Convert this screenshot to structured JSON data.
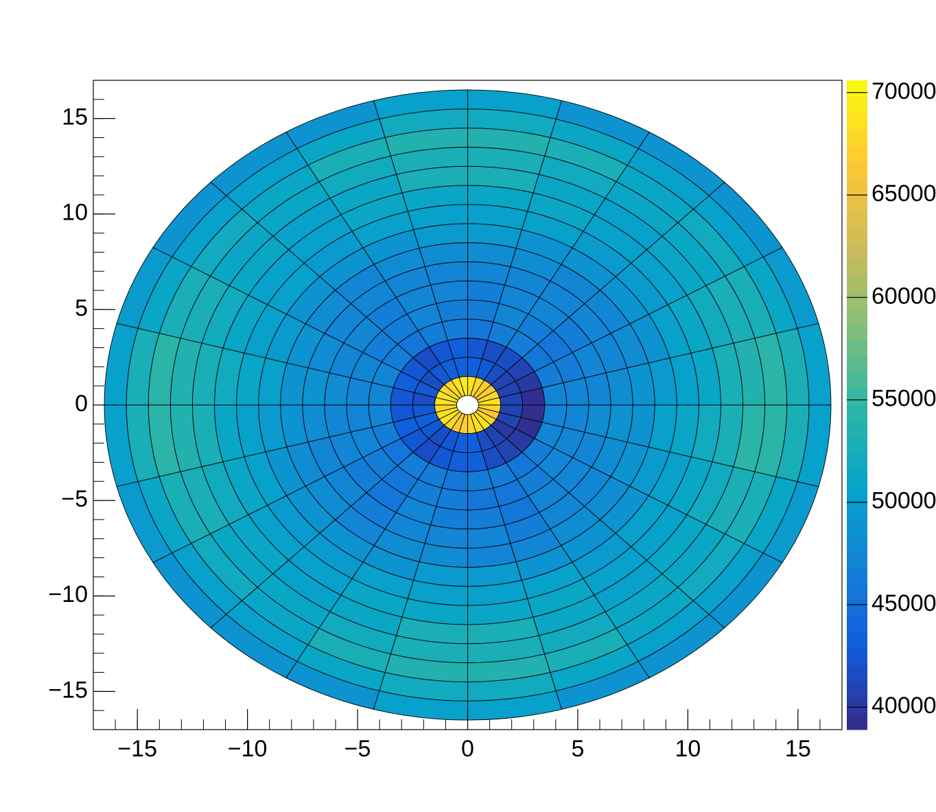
{
  "chart_data": {
    "type": "polar_heatmap",
    "r_edges": [
      0.5,
      1.5,
      2.5,
      3.5,
      4.5,
      5.5,
      6.5,
      7.5,
      8.5,
      9.5,
      10.5,
      11.5,
      12.5,
      13.5,
      14.5,
      15.5,
      16.5
    ],
    "sectors": 24,
    "values": [
      [
        68500,
        67500,
        66500,
        67000,
        68000,
        69000,
        69500,
        68500,
        67500,
        68000,
        69000,
        68500,
        67500,
        68500,
        69000,
        68000,
        66500,
        67000,
        68000,
        69000,
        68500,
        67500,
        66500,
        67500
      ],
      [
        40500,
        41000,
        40500,
        41500,
        42500,
        43000,
        43500,
        43000,
        42500,
        42000,
        42500,
        42000,
        42500,
        43000,
        42500,
        42000,
        42500,
        43000,
        43500,
        41500,
        40500,
        40000,
        40500,
        40500
      ],
      [
        39500,
        40000,
        40500,
        41500,
        42000,
        42500,
        43000,
        42500,
        42000,
        42500,
        43000,
        42500,
        42500,
        43000,
        42500,
        42000,
        42500,
        43500,
        43000,
        41500,
        40500,
        40000,
        39500,
        39500
      ],
      [
        47000,
        46500,
        46000,
        46500,
        46500,
        46000,
        46500,
        46500,
        46000,
        46500,
        47000,
        47500,
        47000,
        46500,
        46000,
        46500,
        46500,
        46000,
        46500,
        46500,
        46000,
        46500,
        47000,
        47500
      ],
      [
        47000,
        46500,
        45500,
        46500,
        47000,
        46500,
        46500,
        47000,
        46500,
        46500,
        47000,
        47500,
        47500,
        47000,
        46500,
        46000,
        46500,
        46500,
        46000,
        45500,
        46500,
        47000,
        47000,
        47500
      ],
      [
        47500,
        47000,
        46500,
        47000,
        47000,
        46500,
        47000,
        47000,
        46500,
        47000,
        47500,
        48000,
        47500,
        47000,
        46500,
        46000,
        47000,
        46500,
        46500,
        46000,
        47000,
        47500,
        47500,
        48000
      ],
      [
        48000,
        47500,
        47000,
        47000,
        47500,
        47000,
        47500,
        47500,
        47000,
        47500,
        48000,
        48500,
        48000,
        47500,
        47000,
        46500,
        47500,
        47000,
        47000,
        46500,
        47500,
        47500,
        48000,
        48500
      ],
      [
        48500,
        48000,
        47500,
        47500,
        48000,
        48000,
        48000,
        48000,
        47500,
        48000,
        48500,
        49000,
        48500,
        48000,
        48000,
        47500,
        48000,
        48000,
        47500,
        47000,
        48000,
        48000,
        48500,
        49000
      ],
      [
        49500,
        49000,
        48500,
        48500,
        49000,
        49500,
        49500,
        49000,
        48500,
        49000,
        49500,
        50000,
        49500,
        49000,
        48500,
        48500,
        49000,
        49500,
        49500,
        49000,
        48500,
        49000,
        49500,
        50000
      ],
      [
        50500,
        50000,
        49500,
        49500,
        50000,
        50500,
        50500,
        50000,
        49500,
        50000,
        50500,
        51000,
        50500,
        50000,
        49500,
        49500,
        50000,
        50500,
        50500,
        50000,
        49500,
        50000,
        50500,
        51000
      ],
      [
        51500,
        51000,
        50500,
        50000,
        51000,
        51500,
        51500,
        51000,
        50000,
        50500,
        51000,
        52000,
        51500,
        51000,
        50500,
        50000,
        51000,
        51500,
        51500,
        51000,
        50000,
        50500,
        51000,
        52000
      ],
      [
        52500,
        52000,
        51000,
        50500,
        51500,
        52500,
        52500,
        51500,
        50500,
        51000,
        52000,
        53000,
        52500,
        52000,
        51000,
        50500,
        51500,
        52500,
        52500,
        51500,
        50500,
        51000,
        52000,
        53000
      ],
      [
        53500,
        52500,
        51500,
        51000,
        52000,
        53000,
        53000,
        52000,
        51000,
        51500,
        52500,
        53500,
        53500,
        52500,
        51500,
        51000,
        52000,
        53000,
        53000,
        52000,
        51000,
        51500,
        52500,
        54000
      ],
      [
        54000,
        53000,
        52000,
        51500,
        52500,
        53500,
        53500,
        52500,
        51500,
        52000,
        53000,
        54000,
        54000,
        53000,
        52000,
        51000,
        52500,
        53500,
        53500,
        52500,
        51500,
        52000,
        53000,
        54500
      ],
      [
        52500,
        51500,
        50500,
        50000,
        51000,
        52000,
        52000,
        51000,
        50000,
        50500,
        51500,
        52500,
        52500,
        51500,
        50500,
        50000,
        51000,
        52000,
        52000,
        51000,
        50000,
        50500,
        51500,
        52500
      ],
      [
        50000,
        49500,
        49000,
        48500,
        49000,
        50000,
        50000,
        49000,
        48500,
        49000,
        49500,
        50000,
        50000,
        49500,
        49000,
        48500,
        49000,
        50000,
        50000,
        49000,
        48500,
        49000,
        49500,
        50000
      ]
    ],
    "xlim": [
      -17,
      17
    ],
    "ylim": [
      -17,
      17
    ],
    "xticks": [
      {
        "value": -15,
        "label": "−15"
      },
      {
        "value": -10,
        "label": "−10"
      },
      {
        "value": -5,
        "label": "−5"
      },
      0,
      5,
      10,
      15
    ],
    "yticks": [
      {
        "value": -15,
        "label": "−15"
      },
      {
        "value": -10,
        "label": "−10"
      },
      {
        "value": -5,
        "label": "−5"
      },
      0,
      5,
      10,
      15
    ],
    "minor_divisions": 5,
    "zlim": [
      38900,
      70600
    ],
    "zticks": [
      40000,
      45000,
      50000,
      55000,
      60000,
      65000,
      70000
    ],
    "contours": 40,
    "palette": [
      "#352a87",
      "#0f5cdd",
      "#1481d6",
      "#06a4ca",
      "#2eb7a4",
      "#87bf77",
      "#d1bb59",
      "#fec832",
      "#f9fb0e"
    ]
  }
}
